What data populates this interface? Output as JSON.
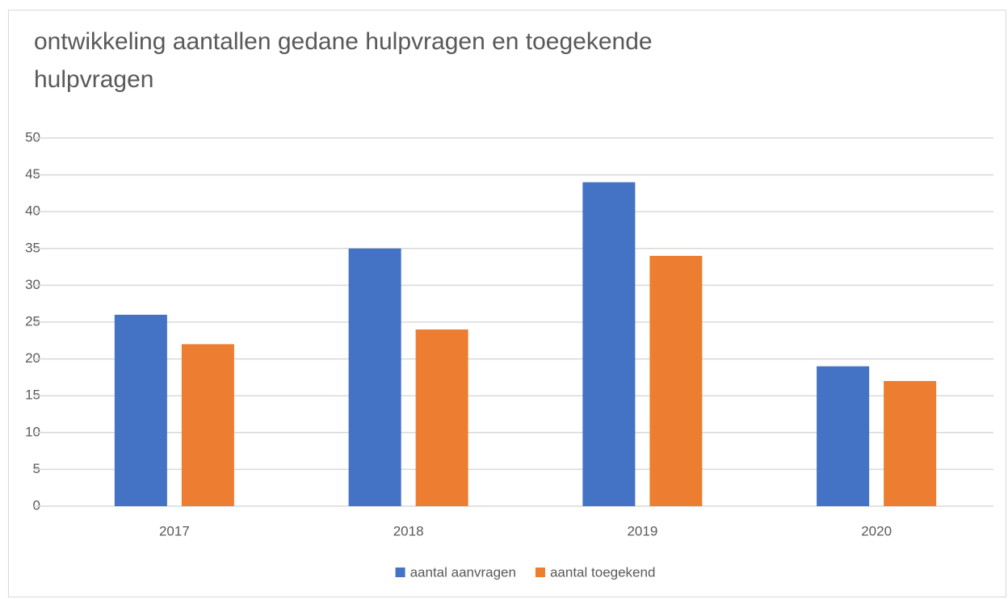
{
  "chart_data": {
    "type": "bar",
    "title": "ontwikkeling aantallen gedane hulpvragen en toegekende hulpvragen",
    "categories": [
      "2017",
      "2018",
      "2019",
      "2020"
    ],
    "series": [
      {
        "name": "aantal aanvragen",
        "color": "#4472c4",
        "values": [
          26,
          35,
          44,
          19
        ]
      },
      {
        "name": "aantal toegekend",
        "color": "#ed7d31",
        "values": [
          22,
          24,
          34,
          17
        ]
      }
    ],
    "ylim": [
      0,
      50
    ],
    "yticks": [
      0,
      5,
      10,
      15,
      20,
      25,
      30,
      35,
      40,
      45,
      50
    ],
    "grid": true,
    "legend": "bottom"
  }
}
